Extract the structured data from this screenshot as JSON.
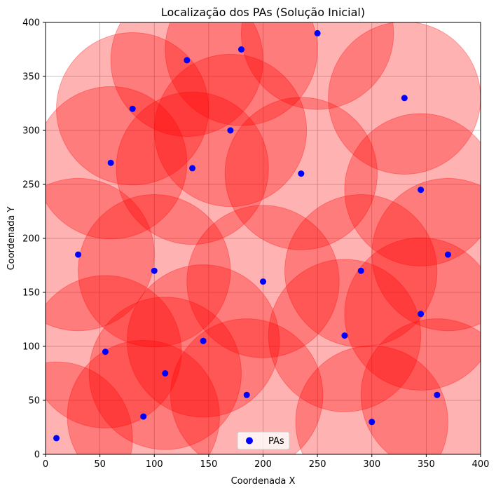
{
  "chart_data": {
    "type": "scatter",
    "title": "Localização dos PAs (Solução Inicial)",
    "xlabel": "Coordenada X",
    "ylabel": "Coordenada Y",
    "xlim": [
      0,
      400
    ],
    "ylim": [
      0,
      400
    ],
    "xticks": [
      0,
      50,
      100,
      150,
      200,
      250,
      300,
      350,
      400
    ],
    "yticks": [
      0,
      50,
      100,
      150,
      200,
      250,
      300,
      350,
      400
    ],
    "grid": true,
    "legend": {
      "position": "bottom-center",
      "entries": [
        "PAs"
      ]
    },
    "coverage_radius": 70,
    "colors": {
      "points": "#0000ff",
      "circle_fill": "#ff0000",
      "circle_stroke": "#ff0000",
      "grid": "#b0b0b0"
    },
    "series": [
      {
        "name": "PAs",
        "points": [
          {
            "x": 250,
            "y": 390
          },
          {
            "x": 180,
            "y": 375
          },
          {
            "x": 130,
            "y": 365
          },
          {
            "x": 330,
            "y": 330
          },
          {
            "x": 80,
            "y": 320
          },
          {
            "x": 170,
            "y": 300
          },
          {
            "x": 60,
            "y": 270
          },
          {
            "x": 135,
            "y": 265
          },
          {
            "x": 235,
            "y": 260
          },
          {
            "x": 345,
            "y": 245
          },
          {
            "x": 30,
            "y": 185
          },
          {
            "x": 370,
            "y": 185
          },
          {
            "x": 100,
            "y": 170
          },
          {
            "x": 290,
            "y": 170
          },
          {
            "x": 200,
            "y": 160
          },
          {
            "x": 345,
            "y": 130
          },
          {
            "x": 275,
            "y": 110
          },
          {
            "x": 145,
            "y": 105
          },
          {
            "x": 55,
            "y": 95
          },
          {
            "x": 110,
            "y": 75
          },
          {
            "x": 185,
            "y": 55
          },
          {
            "x": 360,
            "y": 55
          },
          {
            "x": 90,
            "y": 35
          },
          {
            "x": 300,
            "y": 30
          },
          {
            "x": 10,
            "y": 15
          }
        ]
      }
    ]
  }
}
